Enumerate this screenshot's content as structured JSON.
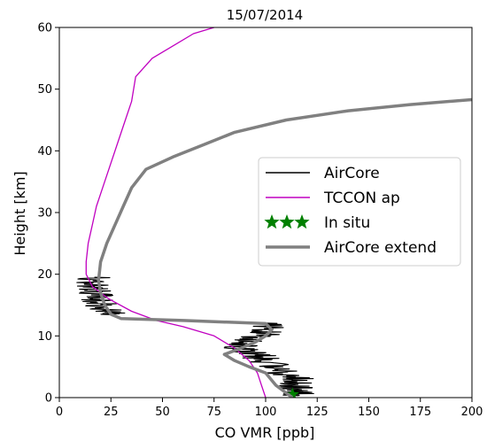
{
  "chart_data": {
    "type": "line",
    "title": "15/07/2014",
    "xlabel": "CO VMR [ppb]",
    "ylabel": "Height [km]",
    "xlim": [
      0,
      200
    ],
    "ylim": [
      0,
      60
    ],
    "xticks": [
      0,
      25,
      50,
      75,
      100,
      125,
      150,
      175,
      200
    ],
    "yticks": [
      0,
      10,
      20,
      30,
      40,
      50,
      60
    ],
    "grid": false,
    "legend_position": "center-right",
    "series": [
      {
        "name": "AirCore",
        "color": "#000000",
        "style": "noisy-line",
        "points": [
          [
            115,
            0.3
          ],
          [
            118,
            1
          ],
          [
            112,
            2
          ],
          [
            116,
            3
          ],
          [
            108,
            4
          ],
          [
            104,
            5
          ],
          [
            100,
            6
          ],
          [
            95,
            7
          ],
          [
            88,
            8
          ],
          [
            92,
            9
          ],
          [
            98,
            10
          ],
          [
            102,
            11
          ],
          [
            100,
            12
          ],
          [
            60,
            12.5
          ],
          [
            30,
            12.8
          ],
          [
            25,
            13.5
          ],
          [
            22,
            14.5
          ],
          [
            20,
            15.5
          ],
          [
            18,
            16.5
          ],
          [
            16,
            17.5
          ],
          [
            15,
            18.5
          ],
          [
            17,
            19.5
          ]
        ]
      },
      {
        "name": "TCCON ap",
        "color": "#c000c0",
        "points": [
          [
            100,
            0
          ],
          [
            98,
            2
          ],
          [
            96,
            4
          ],
          [
            92,
            6
          ],
          [
            85,
            8
          ],
          [
            75,
            10
          ],
          [
            60,
            11.5
          ],
          [
            47,
            12.5
          ],
          [
            35,
            14
          ],
          [
            24,
            16
          ],
          [
            16,
            18
          ],
          [
            13,
            20
          ],
          [
            13,
            22
          ],
          [
            14,
            25
          ],
          [
            16,
            28
          ],
          [
            18,
            31
          ],
          [
            21,
            34
          ],
          [
            24,
            37
          ],
          [
            27,
            40
          ],
          [
            31,
            44
          ],
          [
            35,
            48
          ],
          [
            37,
            52
          ],
          [
            45,
            55
          ],
          [
            55,
            57
          ],
          [
            65,
            59
          ],
          [
            75,
            60
          ]
        ]
      },
      {
        "name": "In situ",
        "color": "#008000",
        "marker": "star",
        "points": [
          [
            113,
            0.5
          ]
        ]
      },
      {
        "name": "AirCore extend",
        "color": "#808080",
        "points": [
          [
            113,
            0
          ],
          [
            105,
            2
          ],
          [
            100,
            4
          ],
          [
            92,
            5
          ],
          [
            85,
            6
          ],
          [
            80,
            7
          ],
          [
            88,
            8
          ],
          [
            95,
            9
          ],
          [
            100,
            10
          ],
          [
            103,
            11
          ],
          [
            100,
            12
          ],
          [
            60,
            12.5
          ],
          [
            30,
            12.8
          ],
          [
            25,
            13.5
          ],
          [
            22,
            15
          ],
          [
            20,
            17
          ],
          [
            19,
            19
          ],
          [
            20,
            22
          ],
          [
            23,
            25
          ],
          [
            27,
            28
          ],
          [
            31,
            31
          ],
          [
            35,
            34
          ],
          [
            42,
            37
          ],
          [
            55,
            39
          ],
          [
            70,
            41
          ],
          [
            85,
            43
          ],
          [
            110,
            45
          ],
          [
            140,
            46.5
          ],
          [
            170,
            47.5
          ],
          [
            200,
            48.3
          ]
        ]
      }
    ]
  }
}
